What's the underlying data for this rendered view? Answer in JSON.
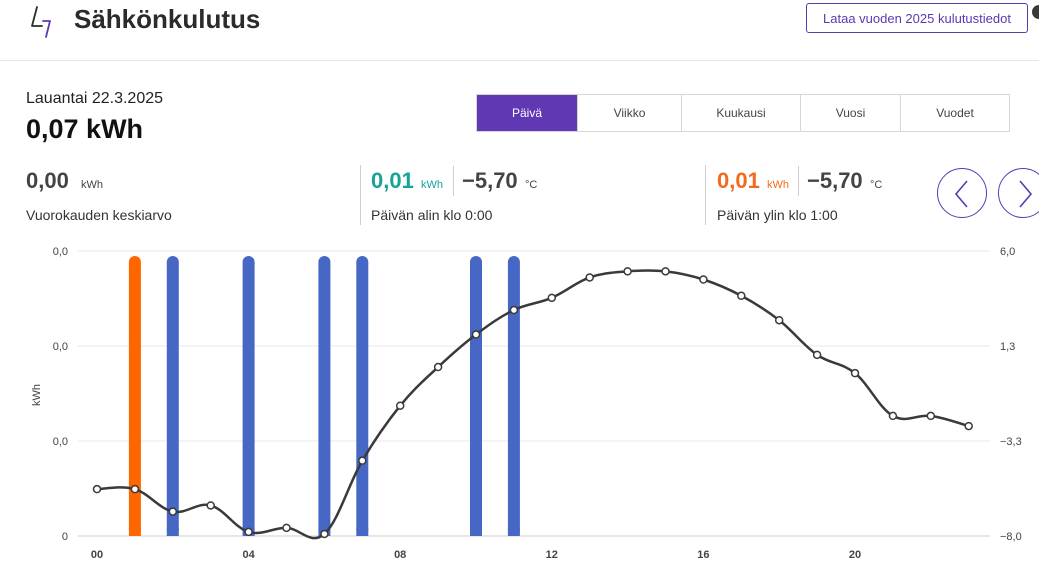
{
  "header": {
    "title": "Sähkönkulutus",
    "download_label": "Lataa vuoden 2025 kulutustiedot"
  },
  "summary": {
    "date": "Lauantai 22.3.2025",
    "total": "0,07 kWh"
  },
  "tabs": [
    {
      "label": "Päivä",
      "active": true
    },
    {
      "label": "Viikko",
      "active": false
    },
    {
      "label": "Kuukausi",
      "active": false
    },
    {
      "label": "Vuosi",
      "active": false
    },
    {
      "label": "Vuodet",
      "active": false
    }
  ],
  "stats": {
    "average": {
      "value": "0,00",
      "unit": "kWh",
      "label": "Vuorokauden keskiarvo"
    },
    "min": {
      "value": "0,01",
      "unit": "kWh",
      "temp": "−5,70",
      "temp_unit": "°C",
      "label": "Päivän alin klo 0:00",
      "color": "#17a398"
    },
    "max": {
      "value": "0,01",
      "unit": "kWh",
      "temp": "−5,70",
      "temp_unit": "°C",
      "label": "Päivän ylin klo 1:00",
      "color": "#f26b1d"
    }
  },
  "nav": {
    "prev_icon": "chevron-left-icon",
    "next_icon": "chevron-right-icon"
  },
  "colors": {
    "accent": "#5b3bb0",
    "bar": "#4767c4",
    "bar_highlight": "#ff6600",
    "temp_line": "#3a3a3a"
  },
  "chart_data": {
    "type": "bar",
    "ylabel": "kWh",
    "y_ticks": [
      "0,0",
      "0,0",
      "0,0",
      "0"
    ],
    "y2_ticks": [
      "6,0",
      "1,3",
      "−3,3",
      "−8,0"
    ],
    "y2lim": [
      -8.0,
      6.0
    ],
    "x_ticks": [
      "00",
      "04",
      "08",
      "12",
      "16",
      "20"
    ],
    "hours": [
      0,
      1,
      2,
      3,
      4,
      5,
      6,
      7,
      8,
      9,
      10,
      11,
      12,
      13,
      14,
      15,
      16,
      17,
      18,
      19,
      20,
      21,
      22,
      23
    ],
    "consumption_bars": [
      {
        "hour": 1,
        "highlight": true
      },
      {
        "hour": 2,
        "highlight": false
      },
      {
        "hour": 4,
        "highlight": false
      },
      {
        "hour": 6,
        "highlight": false
      },
      {
        "hour": 7,
        "highlight": false
      },
      {
        "hour": 10,
        "highlight": false
      },
      {
        "hour": 11,
        "highlight": false
      }
    ],
    "series": [
      {
        "values": [
          -5.7,
          -5.7,
          -6.8,
          -6.5,
          -7.8,
          -7.6,
          -7.9,
          -4.3,
          -1.6,
          0.3,
          1.9,
          3.1,
          3.7,
          4.7,
          5.0,
          5.0,
          4.6,
          3.8,
          2.6,
          0.9,
          0.0,
          -2.1,
          -2.1,
          -2.6
        ]
      }
    ]
  }
}
